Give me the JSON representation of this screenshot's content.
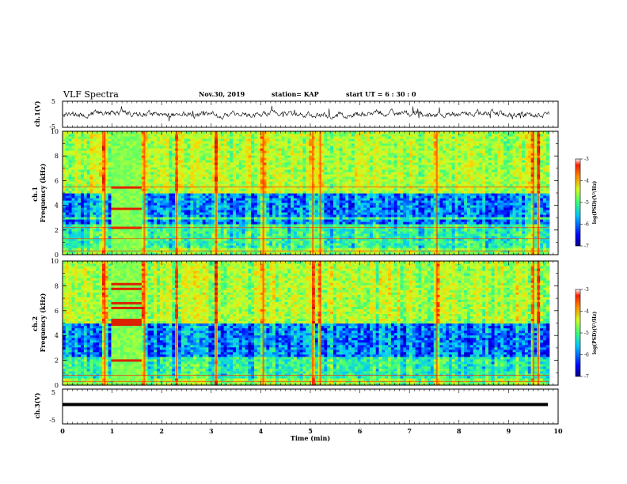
{
  "header": {
    "title": "VLF Spectra",
    "date": "Nov.30, 2019",
    "station": "station= KAP",
    "start": "start UT =  6 : 30 : 0"
  },
  "chart_data": [
    {
      "type": "line",
      "panel": "ch1-waveform",
      "ylabel": "ch.1(V)",
      "ylim": [
        -5,
        5
      ],
      "yticks": [
        "5",
        "-5"
      ],
      "xlim": [
        0,
        10
      ],
      "note": "noisy broadband waveform, amplitude mostly within ±2 V"
    },
    {
      "type": "heatmap",
      "panel": "ch1-spectrogram",
      "ylabel": "ch.1\nFrequency (kHz)",
      "ylim": [
        0,
        10
      ],
      "yticks": [
        "0",
        "2",
        "4",
        "6",
        "8",
        "10"
      ],
      "xlim": [
        0,
        10
      ],
      "colorbar": {
        "label": "log(PSD)(V²/Hz)",
        "range": [
          -7,
          -3
        ],
        "ticks": [
          "-3",
          "-4",
          "-5",
          "-6",
          "-7"
        ]
      },
      "features": {
        "banded_noise_minutes": [
          1.0,
          1.6
        ],
        "low_freq_dark_bands_khz": [
          2.7,
          3.3,
          3.8,
          4.3,
          4.7
        ],
        "strong_impulse_minutes": [
          0.85,
          1.65,
          2.3,
          3.1,
          4.05,
          5.05,
          5.2,
          7.55,
          9.5,
          9.6
        ]
      }
    },
    {
      "type": "heatmap",
      "panel": "ch2-spectrogram",
      "ylabel": "ch.2\nFrequency (kHz)",
      "ylim": [
        0,
        10
      ],
      "yticks": [
        "0",
        "2",
        "4",
        "6",
        "8",
        "10"
      ],
      "xlim": [
        0,
        10
      ],
      "colorbar": {
        "label": "log(PSD)(V²/Hz)",
        "range": [
          -7,
          -3
        ],
        "ticks": [
          "-3",
          "-4",
          "-5",
          "-6",
          "-7"
        ]
      },
      "features": {
        "banded_noise_minutes": [
          1.0,
          1.6
        ],
        "banded_lines_khz": [
          2.0,
          4.9,
          5.2,
          6.3,
          6.6,
          7.8,
          8.2
        ],
        "strong_impulse_minutes": [
          0.85,
          1.65,
          2.3,
          3.1,
          4.05,
          5.05,
          5.2,
          7.55,
          9.5,
          9.6
        ]
      }
    },
    {
      "type": "line",
      "panel": "ch3-waveform",
      "ylabel": "ch.3(V)",
      "ylim": [
        -5,
        5
      ],
      "yticks": [
        "5",
        "-5"
      ],
      "xlim": [
        0,
        10
      ],
      "note": "flat trace at about 0 V"
    }
  ],
  "xaxis": {
    "label": "Time (min)",
    "ticks": [
      "0",
      "1",
      "2",
      "3",
      "4",
      "5",
      "6",
      "7",
      "8",
      "9",
      "10"
    ]
  },
  "colors": {
    "colormap": [
      "#00008f",
      "#0000ff",
      "#00c8ff",
      "#3cff7a",
      "#c8ff28",
      "#ffd000",
      "#ff3000",
      "#8a0000"
    ],
    "axes": "#000000"
  }
}
